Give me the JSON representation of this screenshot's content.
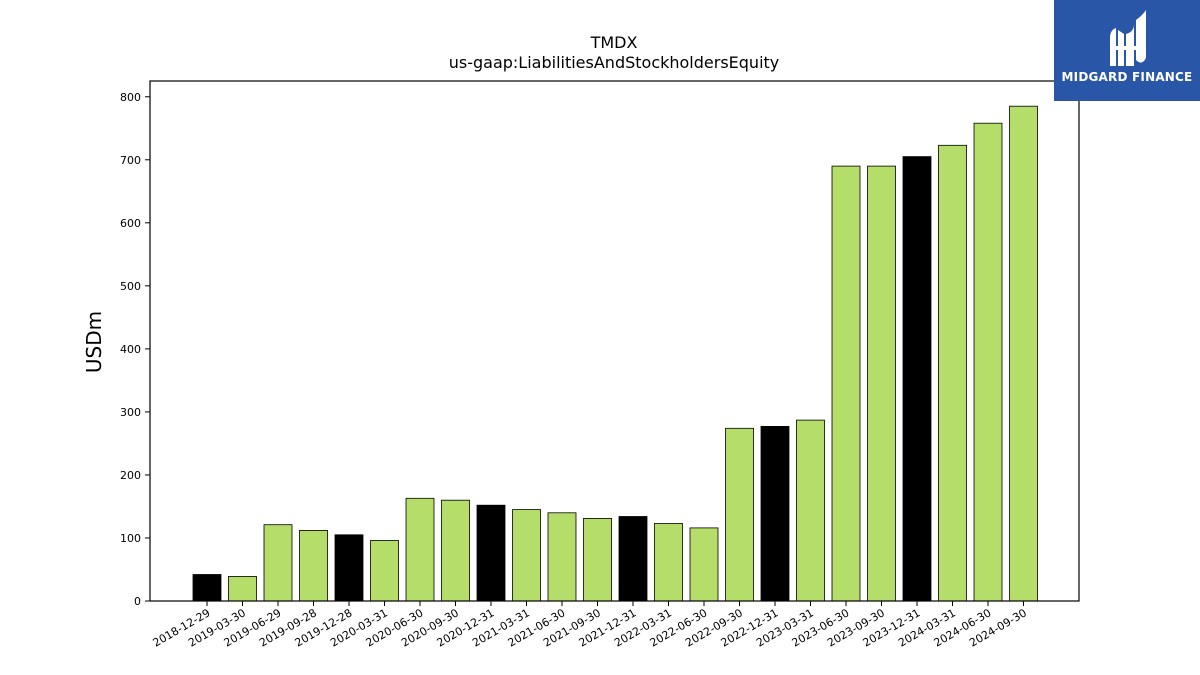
{
  "chart_data": {
    "type": "bar",
    "title": "TMDX",
    "subtitle": "us-gaap:LiabilitiesAndStockholdersEquity",
    "xlabel": "",
    "ylabel": "USDm",
    "ylim": [
      0,
      825
    ],
    "yticks": [
      0,
      100,
      200,
      300,
      400,
      500,
      600,
      700,
      800
    ],
    "grid": false,
    "categories": [
      "2018-12-29",
      "2019-03-30",
      "2019-06-29",
      "2019-09-28",
      "2019-12-28",
      "2020-03-31",
      "2020-06-30",
      "2020-09-30",
      "2020-12-31",
      "2021-03-31",
      "2021-06-30",
      "2021-09-30",
      "2021-12-31",
      "2022-03-31",
      "2022-06-30",
      "2022-09-30",
      "2022-12-31",
      "2023-03-31",
      "2023-06-30",
      "2023-09-30",
      "2023-12-31",
      "2024-03-31",
      "2024-06-30",
      "2024-09-30"
    ],
    "values": [
      42,
      39,
      121,
      112,
      105,
      96,
      163,
      160,
      152,
      145,
      140,
      131,
      134,
      123,
      116,
      274,
      277,
      287,
      690,
      690,
      705,
      723,
      758,
      785
    ],
    "bar_colors": [
      "#000000",
      "#b5dd6a",
      "#b5dd6a",
      "#b5dd6a",
      "#000000",
      "#b5dd6a",
      "#b5dd6a",
      "#b5dd6a",
      "#000000",
      "#b5dd6a",
      "#b5dd6a",
      "#b5dd6a",
      "#000000",
      "#b5dd6a",
      "#b5dd6a",
      "#b5dd6a",
      "#000000",
      "#b5dd6a",
      "#b5dd6a",
      "#b5dd6a",
      "#000000",
      "#b5dd6a",
      "#b5dd6a",
      "#b5dd6a"
    ]
  },
  "logo": {
    "text": "MIDGARD FINANCE",
    "background": "#2a56a8",
    "icon": "midgard-logo-icon"
  }
}
